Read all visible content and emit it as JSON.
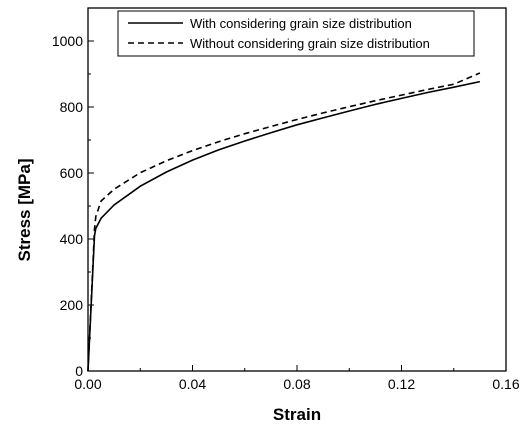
{
  "chart_data": {
    "type": "line",
    "title": "",
    "xlabel": "Strain",
    "ylabel": "Stress [MPa]",
    "xlim": [
      0.0,
      0.16
    ],
    "ylim": [
      0,
      1100
    ],
    "x_ticks": [
      0.0,
      0.04,
      0.08,
      0.12,
      0.16
    ],
    "x_tick_labels": [
      "0.00",
      "0.04",
      "0.08",
      "0.12",
      "0.16"
    ],
    "y_ticks": [
      0,
      200,
      400,
      600,
      800,
      1000
    ],
    "y_tick_labels": [
      "0",
      "200",
      "400",
      "600",
      "800",
      "1000"
    ],
    "grid": false,
    "legend_position": "top-right",
    "series": [
      {
        "name": "With considering grain size distribution",
        "style": "solid",
        "color": "#000000",
        "x": [
          0.0,
          0.0025,
          0.003,
          0.005,
          0.01,
          0.02,
          0.03,
          0.04,
          0.05,
          0.06,
          0.07,
          0.08,
          0.09,
          0.1,
          0.11,
          0.12,
          0.13,
          0.14,
          0.15
        ],
        "y": [
          0,
          410,
          432,
          463,
          503,
          560,
          603,
          639,
          670,
          697,
          722,
          746,
          767,
          788,
          808,
          826,
          844,
          860,
          877
        ]
      },
      {
        "name": "Without considering grain size distribution",
        "style": "dashed",
        "color": "#000000",
        "x": [
          0.0,
          0.0025,
          0.003,
          0.005,
          0.01,
          0.02,
          0.03,
          0.04,
          0.05,
          0.06,
          0.07,
          0.08,
          0.09,
          0.1,
          0.11,
          0.12,
          0.13,
          0.14,
          0.15
        ],
        "y": [
          0,
          430,
          468,
          515,
          551,
          601,
          637,
          668,
          695,
          719,
          741,
          762,
          782,
          801,
          819,
          836,
          853,
          869,
          903
        ]
      }
    ]
  }
}
